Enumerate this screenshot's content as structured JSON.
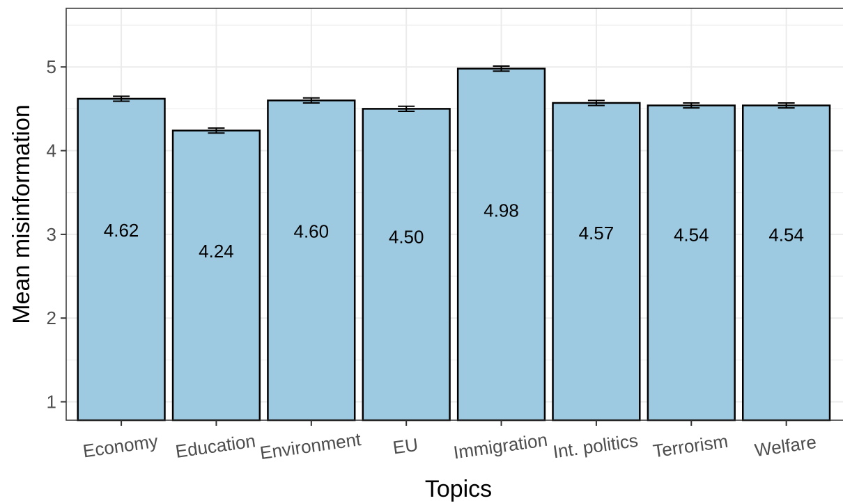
{
  "chart_data": {
    "type": "bar",
    "categories": [
      "Economy",
      "Education",
      "Environment",
      "EU",
      "Immigration",
      "Int. politics",
      "Terrorism",
      "Welfare"
    ],
    "values": [
      4.62,
      4.24,
      4.6,
      4.5,
      4.98,
      4.57,
      4.54,
      4.54
    ],
    "value_labels": [
      "4.62",
      "4.24",
      "4.60",
      "4.50",
      "4.98",
      "4.57",
      "4.54",
      "4.54"
    ],
    "error": [
      0.03,
      0.03,
      0.03,
      0.03,
      0.03,
      0.03,
      0.03,
      0.03
    ],
    "xlabel": "Topics",
    "ylabel": "Mean misinformation",
    "yticks": [
      "1",
      "2",
      "3",
      "4",
      "5"
    ],
    "ylim": [
      0.78,
      5.7
    ],
    "grid": true,
    "bar_color": "#9ecae1",
    "bar_edge_color": "#000000",
    "grid_color": "#ebebeb"
  }
}
